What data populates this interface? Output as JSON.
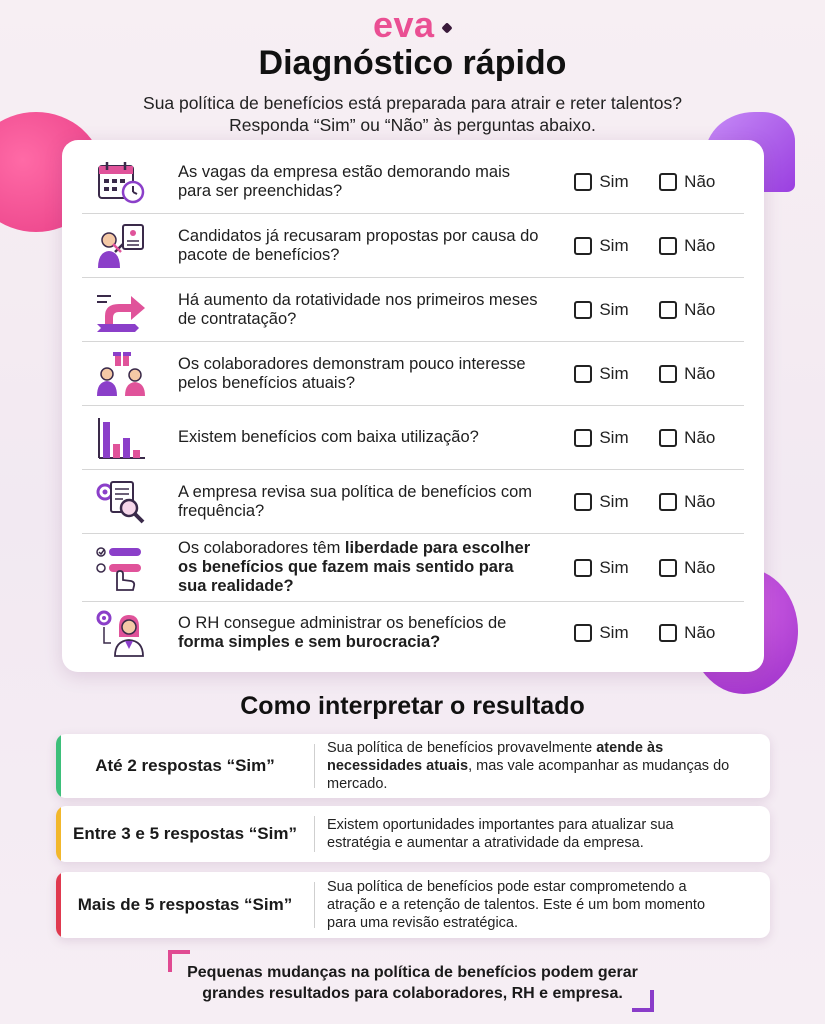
{
  "brand": {
    "logo_text": "eva"
  },
  "header": {
    "title": "Diagnóstico rápido",
    "subtitle_line1": "Sua política de benefícios está preparada para atrair e reter talentos?",
    "subtitle_line2": "Responda “Sim” ou “Não” às perguntas abaixo."
  },
  "options": {
    "yes": "Sim",
    "no": "Não"
  },
  "questions": [
    {
      "icon": "calendar-clock-icon",
      "text": "As vagas da empresa estão demorando mais para ser preenchidas?"
    },
    {
      "icon": "candidate-reject-icon",
      "text": "Candidatos já recusaram propostas por causa do pacote de benefícios?"
    },
    {
      "icon": "turnover-arrow-icon",
      "text": "Há aumento da rotatividade nos primeiros meses de contratação?"
    },
    {
      "icon": "people-gift-icon",
      "text": "Os colaboradores demonstram pouco interesse pelos benefícios atuais?"
    },
    {
      "icon": "bar-chart-icon",
      "text": "Existem benefícios com baixa utilização?"
    },
    {
      "icon": "document-search-icon",
      "text": "A empresa revisa sua política de benefícios com frequência?"
    },
    {
      "icon": "choice-hand-icon",
      "text_plain": "Os colaboradores têm ",
      "text_bold": "liberdade para escolher os benefícios que fazem mais sentido para sua realidade?"
    },
    {
      "icon": "hr-manager-icon",
      "text_plain": "O RH consegue administrar os benefícios de ",
      "text_bold": "forma simples e sem burocracia?"
    }
  ],
  "interpret": {
    "title": "Como interpretar o resultado",
    "results": [
      {
        "label": "Até 2 respostas “Sim”",
        "text_a": "Sua política de benefícios provavelmente ",
        "text_bold": "atende às necessidades atuais",
        "text_b": ", mas vale acompanhar as mudanças do mercado.",
        "color": "#3dbf7a"
      },
      {
        "label": "Entre 3 e 5 respostas “Sim”",
        "text_a": "Existem oportunidades importantes para atualizar sua estratégia e aumentar a atratividade da empresa.",
        "color": "#f2b72c"
      },
      {
        "label": "Mais de 5 respostas “Sim”",
        "text_a": "Sua política de benefícios pode estar comprometendo a atração e a retenção de talentos. Este é um bom momento para uma revisão estratégica.",
        "color": "#e0394f"
      }
    ]
  },
  "footer": {
    "line1": "Pequenas mudanças na política de benefícios podem gerar",
    "line2": "grandes resultados para colaboradores, RH e empresa."
  },
  "colors": {
    "brand_pink": "#ea4f93",
    "icon_purple": "#8b3fc9",
    "icon_pink": "#e0539a"
  }
}
